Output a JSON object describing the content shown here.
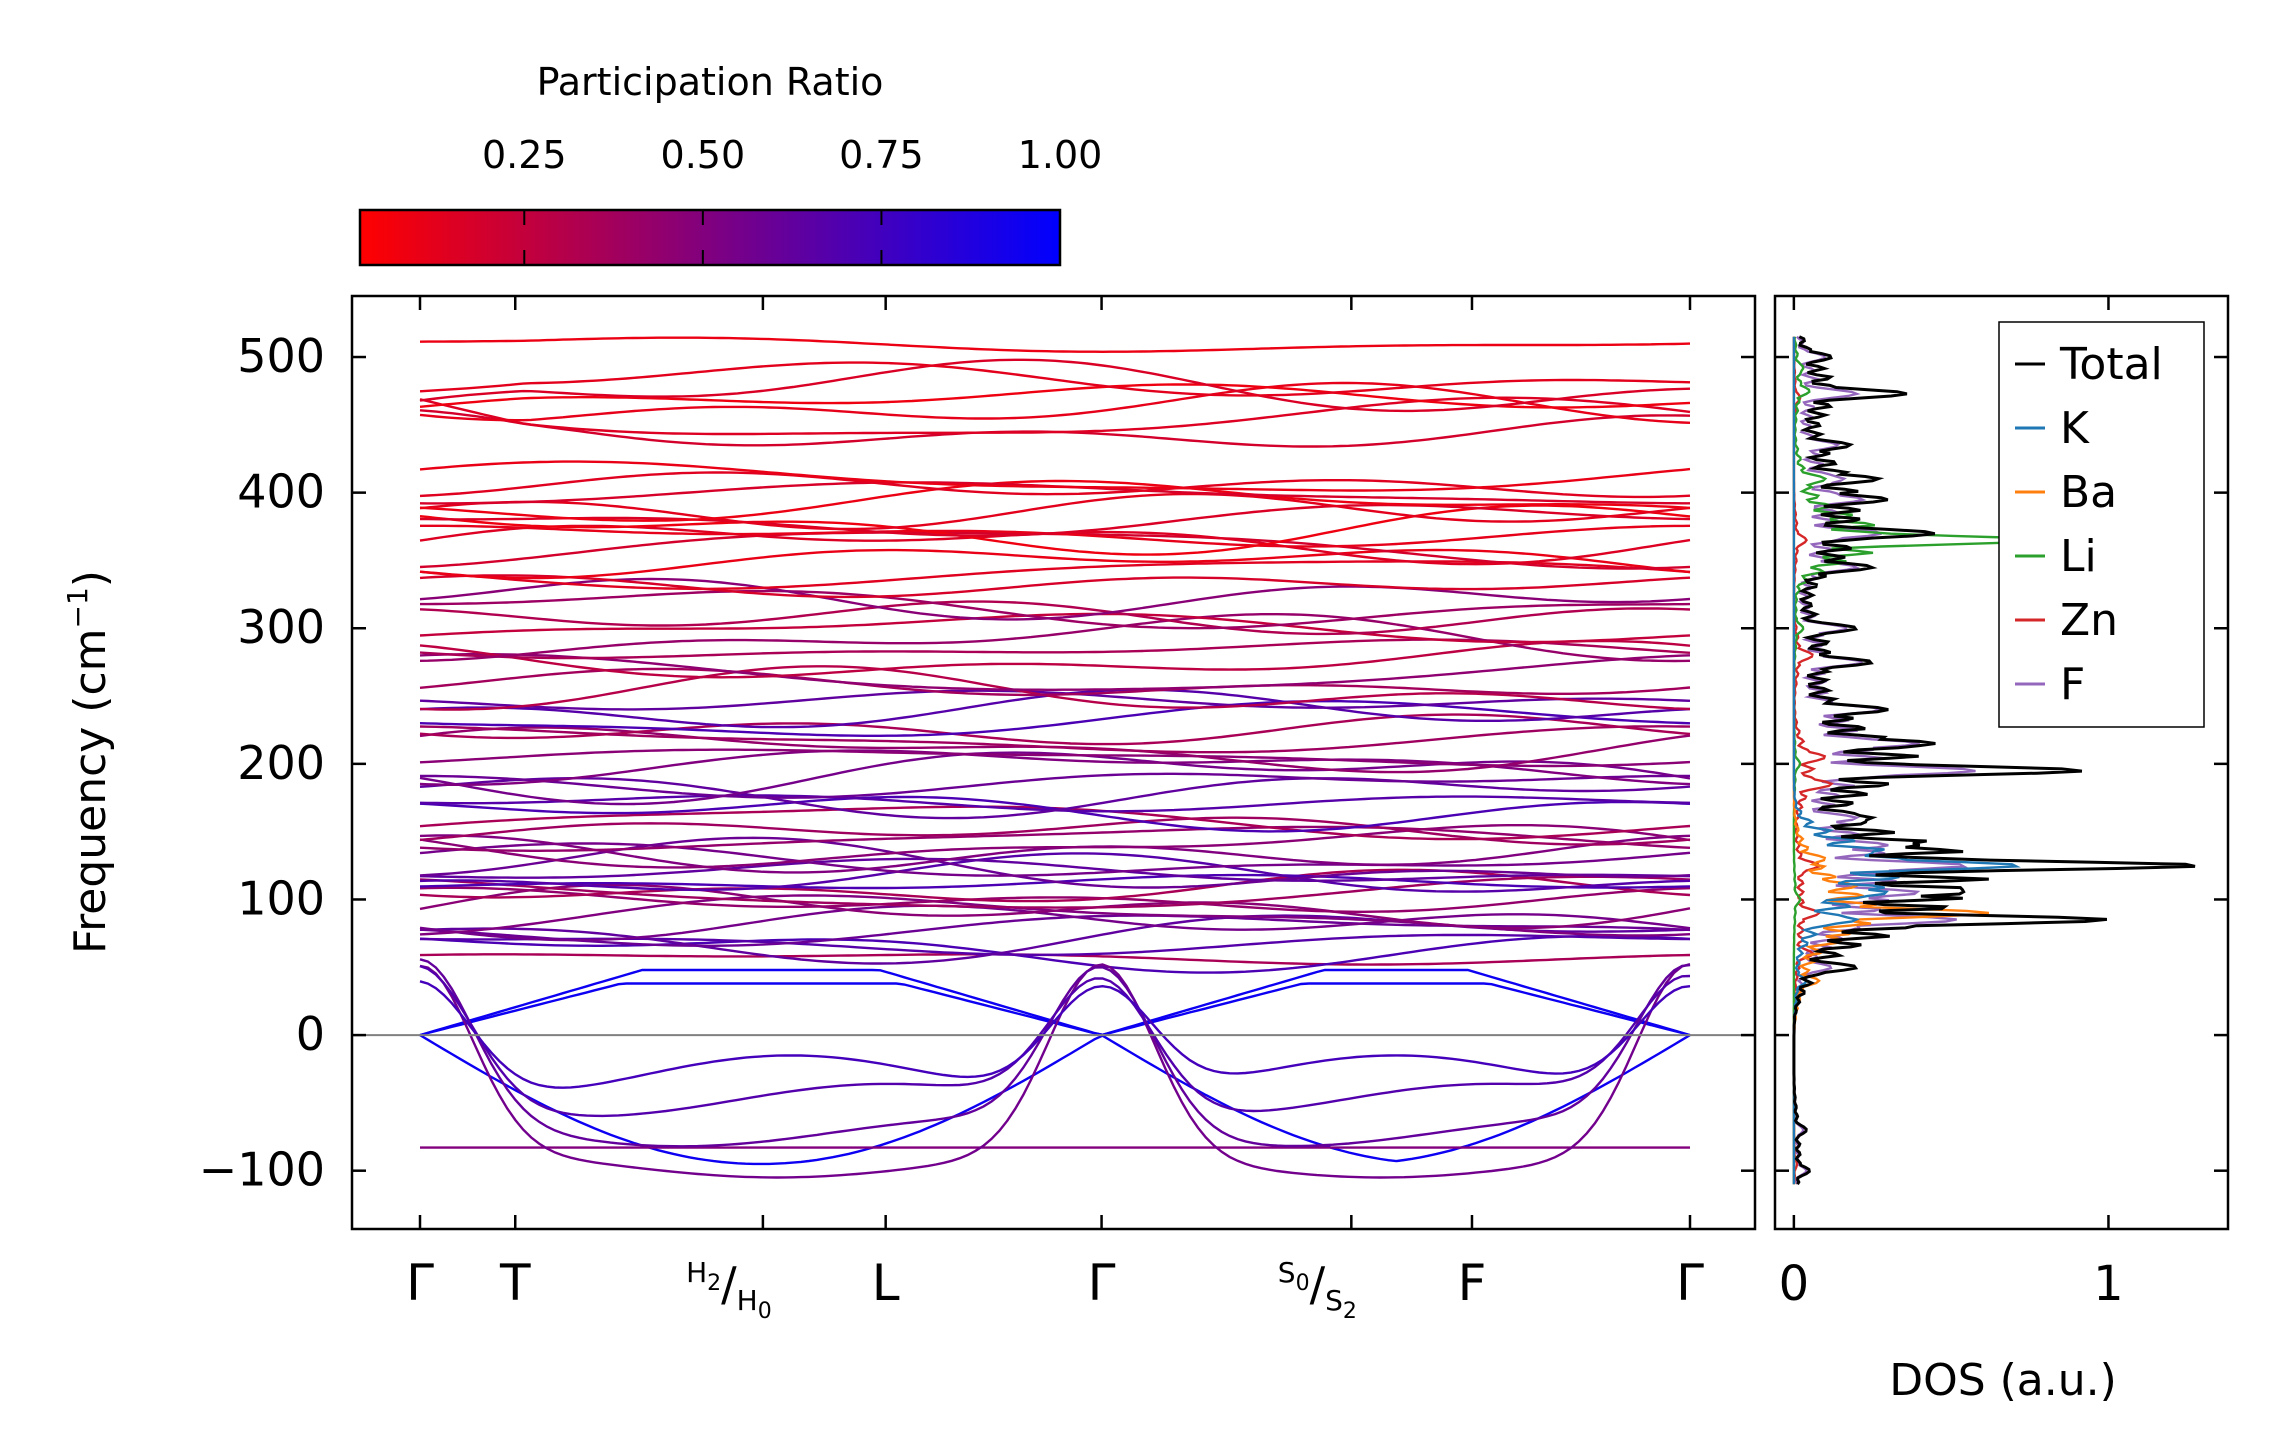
{
  "figure": {
    "colorbar": {
      "label": "Participation Ratio",
      "ticks": [
        0.25,
        0.5,
        0.75,
        1.0
      ],
      "tick_labels": [
        "0.25",
        "0.50",
        "0.75",
        "1.00"
      ],
      "range": [
        0.02,
        1.0
      ],
      "colors": {
        "low": "#ff0000",
        "high": "#0000ff"
      }
    },
    "chart_data": [
      {
        "type": "line",
        "name": "phonon-dispersion",
        "ylabel": "Frequency (cm⁻¹)",
        "ylabel_base": "Frequency (cm",
        "ylabel_sup": "−1",
        "ylabel_close": ")",
        "ylim": [
          -143,
          545
        ],
        "yticks": [
          -100,
          0,
          100,
          200,
          300,
          400,
          500
        ],
        "ytick_labels": [
          "−100",
          "0",
          "100",
          "200",
          "300",
          "400",
          "500"
        ],
        "x_range": [
          0,
          6.0
        ],
        "high_symmetry_points": [
          {
            "x": 0.0,
            "label": "Γ"
          },
          {
            "x": 0.45,
            "label": "T"
          },
          {
            "x": 1.62,
            "label": "H",
            "sub_a": "2",
            "label_b": "H",
            "sub_b": "0",
            "split": true
          },
          {
            "x": 2.2,
            "label": "L"
          },
          {
            "x": 3.22,
            "label": "Γ"
          },
          {
            "x": 4.4,
            "label": "S",
            "sub_a": "0",
            "label_b": "S",
            "sub_b": "2",
            "split": true
          },
          {
            "x": 4.97,
            "label": "F"
          },
          {
            "x": 6.0,
            "label": "Γ"
          }
        ],
        "zero_line": {
          "y": 0,
          "color": "#808080"
        },
        "optical_band_centers": [
          57,
          63,
          68,
          73,
          78,
          83,
          88,
          94,
          99,
          104,
          108,
          112,
          116,
          120,
          124,
          128,
          133,
          139,
          145,
          151,
          158,
          165,
          172,
          179,
          186,
          193,
          199,
          205,
          211,
          218,
          225,
          232,
          239,
          246,
          252,
          258,
          266,
          275,
          284,
          292,
          300,
          308,
          315,
          323,
          332,
          341,
          350,
          360,
          364,
          369,
          374,
          380,
          386,
          393,
          399,
          405,
          410,
          443,
          453,
          463,
          470,
          477,
          483,
          509
        ],
        "soft_modes_sample": {
          "description": "lower branches with negative (imaginary) frequencies",
          "min_frequency": -108,
          "gamma_start": -83,
          "gamma_end": -83
        }
      },
      {
        "type": "line",
        "name": "density-of-states",
        "xlabel": "DOS (a.u.)",
        "xlim": [
          -0.06,
          1.38
        ],
        "xticks": [
          0,
          1
        ],
        "xtick_labels": [
          "0",
          "1"
        ],
        "ylim": [
          -143,
          545
        ],
        "series": [
          {
            "name": "Total",
            "color": "#000000",
            "peaks": [
              [
                -100,
                0.05
              ],
              [
                -70,
                0.04
              ],
              [
                50,
                0.2
              ],
              [
                85,
                1.0
              ],
              [
                105,
                0.55
              ],
              [
                125,
                1.3
              ],
              [
                140,
                0.4
              ],
              [
                160,
                0.25
              ],
              [
                195,
                0.92
              ],
              [
                215,
                0.45
              ],
              [
                240,
                0.3
              ],
              [
                275,
                0.25
              ],
              [
                300,
                0.2
              ],
              [
                345,
                0.25
              ],
              [
                370,
                0.45
              ],
              [
                395,
                0.3
              ],
              [
                410,
                0.27
              ],
              [
                435,
                0.18
              ],
              [
                473,
                0.36
              ],
              [
                500,
                0.12
              ]
            ]
          },
          {
            "name": "K",
            "color": "#1f77b4",
            "peaks": [
              [
                40,
                0.04
              ],
              [
                85,
                0.2
              ],
              [
                105,
                0.3
              ],
              [
                125,
                0.72
              ],
              [
                135,
                0.25
              ]
            ]
          },
          {
            "name": "Ba",
            "color": "#ff7f0e",
            "peaks": [
              [
                40,
                0.08
              ],
              [
                70,
                0.15
              ],
              [
                90,
                0.62
              ],
              [
                110,
                0.2
              ],
              [
                130,
                0.1
              ]
            ]
          },
          {
            "name": "Li",
            "color": "#2ca02c",
            "peaks": [
              [
                100,
                0.02
              ],
              [
                200,
                0.02
              ],
              [
                300,
                0.03
              ],
              [
                365,
                0.82
              ],
              [
                380,
                0.12
              ],
              [
                410,
                0.1
              ],
              [
                475,
                0.05
              ],
              [
                492,
                0.03
              ]
            ]
          },
          {
            "name": "Zn",
            "color": "#d62728",
            "peaks": [
              [
                -95,
                0.01
              ],
              [
                60,
                0.06
              ],
              [
                90,
                0.08
              ],
              [
                125,
                0.08
              ],
              [
                185,
                0.12
              ],
              [
                205,
                0.1
              ],
              [
                280,
                0.06
              ],
              [
                365,
                0.04
              ],
              [
                470,
                0.02
              ]
            ]
          },
          {
            "name": "F",
            "color": "#9467bd",
            "peaks": [
              [
                -100,
                0.04
              ],
              [
                -70,
                0.03
              ],
              [
                50,
                0.12
              ],
              [
                85,
                0.52
              ],
              [
                105,
                0.4
              ],
              [
                125,
                0.55
              ],
              [
                140,
                0.3
              ],
              [
                160,
                0.2
              ],
              [
                195,
                0.58
              ],
              [
                215,
                0.4
              ],
              [
                240,
                0.28
              ],
              [
                275,
                0.22
              ],
              [
                300,
                0.17
              ],
              [
                345,
                0.2
              ],
              [
                370,
                0.28
              ],
              [
                395,
                0.22
              ],
              [
                410,
                0.16
              ],
              [
                435,
                0.14
              ],
              [
                473,
                0.2
              ],
              [
                500,
                0.1
              ]
            ]
          }
        ],
        "legend": {
          "position": "top-right",
          "entries": [
            "Total",
            "K",
            "Ba",
            "Li",
            "Zn",
            "F"
          ]
        }
      }
    ]
  }
}
